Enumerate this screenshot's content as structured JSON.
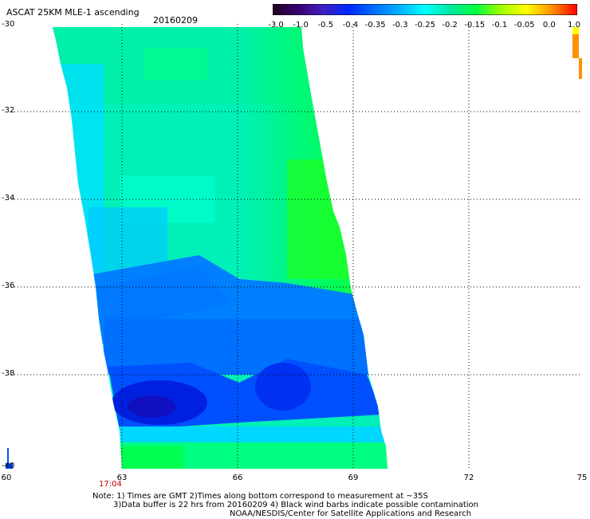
{
  "header": {
    "title": "ASCAT 25KM MLE-1 ascending",
    "date": "20160209"
  },
  "colorbar": {
    "labels": [
      "-3.0",
      "-1.0",
      "-0.5",
      "-0.4",
      "-0.35",
      "-0.3",
      "-0.25",
      "-0.2",
      "-0.15",
      "-0.1",
      "-0.05",
      "0.0",
      "1.0"
    ],
    "colors": [
      "#200020",
      "#3a0070",
      "#4020c0",
      "#0028ff",
      "#0070ff",
      "#00b0ff",
      "#00ffff",
      "#00e8a0",
      "#00ff40",
      "#a0ff00",
      "#ffff00",
      "#ff9000",
      "#ff0000"
    ]
  },
  "axes": {
    "y_labels": [
      "-30",
      "-32",
      "-34",
      "-36",
      "-38",
      "-40"
    ],
    "x_labels": [
      "60",
      "63",
      "66",
      "69",
      "72",
      "75"
    ]
  },
  "pass_time": "17:04",
  "notes": {
    "line1": "Note: 1) Times are GMT 2)Times along bottom correspond to measurement at ~35S",
    "line2": "3)Data buffer is 22 hrs from 20160209 4) Black wind barbs indicate possible contamination",
    "line3": "NOAA/NESDIS/Center for Satellite Applications and Research"
  }
}
